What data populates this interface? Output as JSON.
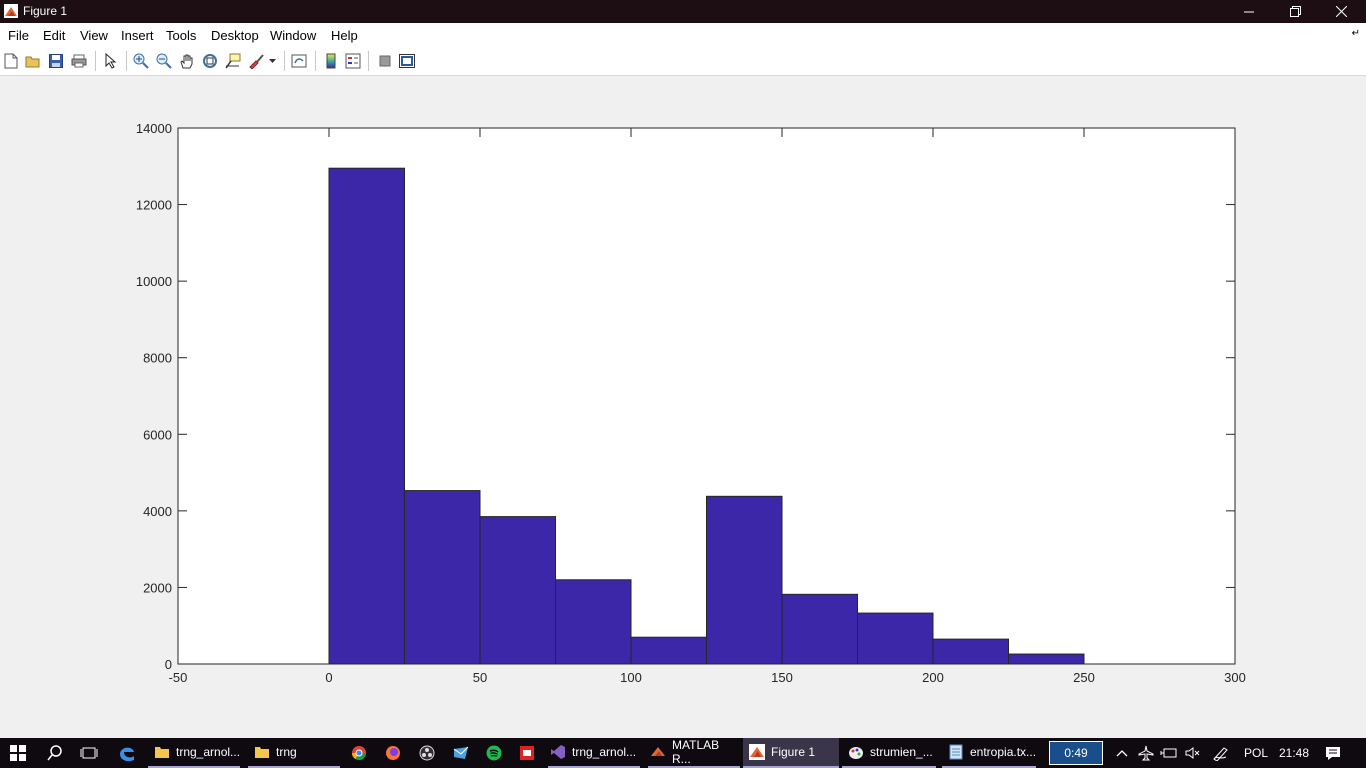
{
  "window": {
    "title": "Figure 1",
    "icons": [
      "matlab-icon",
      "minimize-icon",
      "restore-icon",
      "close-icon"
    ]
  },
  "menu": {
    "items": [
      "File",
      "Edit",
      "View",
      "Insert",
      "Tools",
      "Desktop",
      "Window",
      "Help"
    ]
  },
  "toolbar": {
    "icons": [
      "new-figure-icon",
      "open-file-icon",
      "save-icon",
      "print-icon",
      "edit-plot-arrow-icon",
      "zoom-in-icon",
      "zoom-out-icon",
      "pan-hand-icon",
      "rotate-3d-icon",
      "data-cursor-icon",
      "brush-icon",
      "link-plot-icon",
      "colorbar-icon",
      "legend-icon",
      "hide-plot-tools-icon",
      "show-plot-tools-icon"
    ]
  },
  "chart_data": {
    "type": "bar",
    "title": "",
    "xlabel": "",
    "ylabel": "",
    "xlim": [
      -50,
      300
    ],
    "ylim": [
      0,
      14000
    ],
    "xticks": [
      -50,
      0,
      50,
      100,
      150,
      200,
      250,
      300
    ],
    "yticks": [
      0,
      2000,
      4000,
      6000,
      8000,
      10000,
      12000,
      14000
    ],
    "bin_edges": [
      0,
      25,
      50,
      75,
      100,
      125,
      150,
      175,
      200,
      225,
      250
    ],
    "values": [
      12950,
      4530,
      3850,
      2200,
      700,
      4380,
      1820,
      1330,
      650,
      260
    ],
    "bar_color": "#3b27a8",
    "grid": false,
    "legend": "none"
  },
  "taskbar": {
    "items": [
      {
        "label": "trng_arnol...",
        "icon": "folder-icon"
      },
      {
        "label": "trng",
        "icon": "folder-icon"
      },
      {
        "label": "",
        "icon": "chrome-icon"
      },
      {
        "label": "",
        "icon": "firefox-icon"
      },
      {
        "label": "",
        "icon": "obs-icon"
      },
      {
        "label": "",
        "icon": "mail-icon"
      },
      {
        "label": "",
        "icon": "spotify-icon"
      },
      {
        "label": "",
        "icon": "app-icon"
      },
      {
        "label": "trng_arnol...",
        "icon": "visual-studio-icon"
      },
      {
        "label": "MATLAB R...",
        "icon": "matlab-icon"
      },
      {
        "label": "Figure 1",
        "icon": "matlab-icon"
      },
      {
        "label": "strumien_...",
        "icon": "paint-icon"
      },
      {
        "label": "entropia.tx...",
        "icon": "notepad-icon"
      }
    ],
    "timer": "0:49",
    "language": "POL",
    "time": "21:48"
  }
}
